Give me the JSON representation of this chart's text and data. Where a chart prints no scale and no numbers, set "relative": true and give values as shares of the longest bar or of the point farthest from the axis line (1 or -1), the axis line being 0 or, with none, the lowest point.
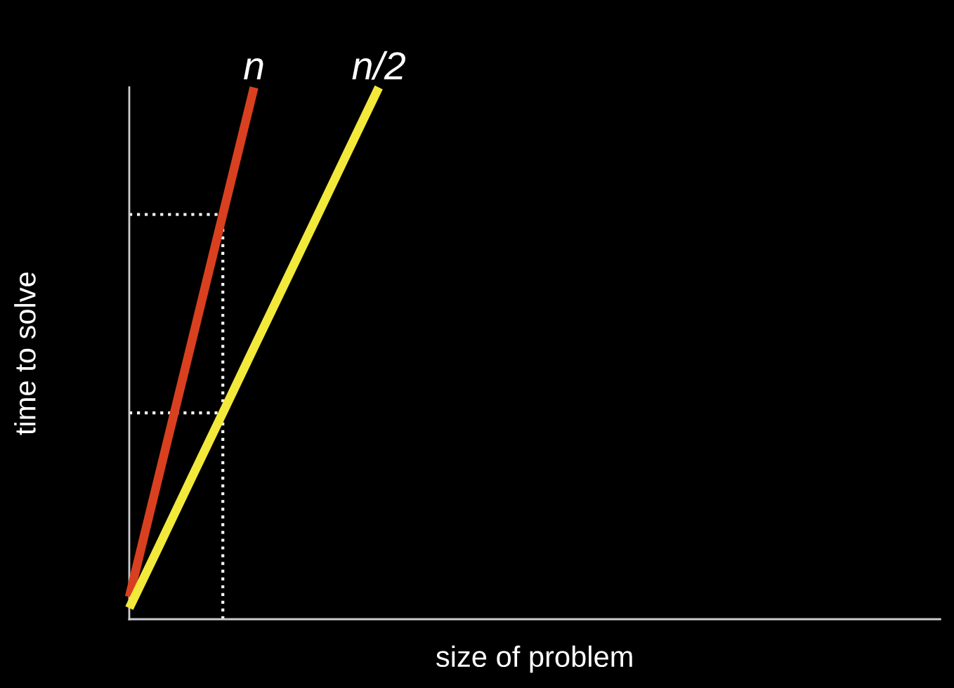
{
  "chart_data": {
    "type": "line",
    "relative": true,
    "xlabel": "size of problem",
    "ylabel": "time to solve",
    "categories": [
      null,
      null,
      null,
      null,
      null,
      null,
      null,
      null,
      null,
      null,
      null,
      null,
      null,
      null,
      null,
      null,
      null,
      null,
      null,
      null,
      null,
      null,
      null,
      null,
      null,
      null
    ],
    "series": [
      {
        "name": "n",
        "color": "#d9401f",
        "values": [
          0.042,
          0.282,
          0.521,
          0.761,
          1,
          null,
          null,
          null,
          null,
          null,
          null,
          null,
          null,
          null,
          null,
          null,
          null,
          null,
          null,
          null,
          null,
          null,
          null,
          null,
          null,
          null
        ]
      },
      {
        "name": "n/2",
        "color": "#f2e93a",
        "values": [
          0.021,
          0.143,
          0.266,
          0.388,
          0.511,
          0.633,
          0.755,
          0.878,
          1,
          null,
          null,
          null,
          null,
          null,
          null,
          null,
          null,
          null,
          null,
          null,
          null,
          null,
          null,
          null,
          null,
          null
        ]
      }
    ],
    "ref_lines": [
      {
        "axis": "y",
        "value": 0.761,
        "color": "#ffffff",
        "line_style": "dotted"
      },
      {
        "axis": "y",
        "value": 0.388,
        "color": "#ffffff",
        "line_style": "dotted"
      }
    ],
    "legend": false
  }
}
